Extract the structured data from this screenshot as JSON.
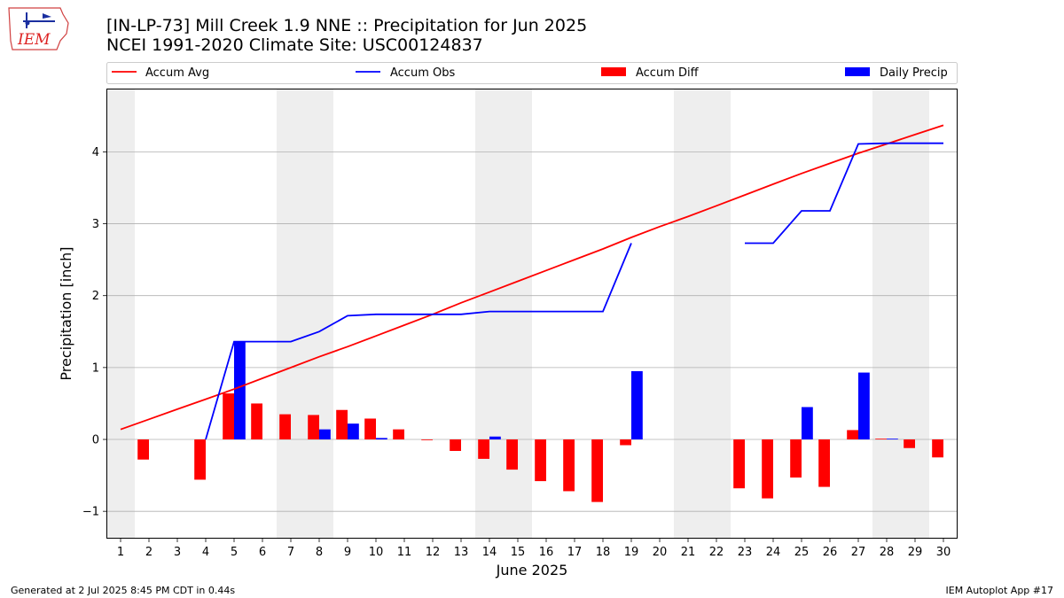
{
  "header": {
    "title_line1": "[IN-LP-73] Mill Creek 1.9 NNE :: Precipitation for Jun 2025",
    "title_line2": "NCEI 1991-2020 Climate Site: USC00124837"
  },
  "logo": {
    "text": "IEM"
  },
  "footer": {
    "left": "Generated at 2 Jul 2025 8:45 PM CDT in 0.44s",
    "right": "IEM Autoplot App #17"
  },
  "colors": {
    "avg": "#ff0000",
    "obs": "#0000ff",
    "diff": "#ff0000",
    "daily": "#0000ff",
    "weekend_band": "#eeeeee",
    "grid": "#b0b0b0"
  },
  "chart_data": {
    "type": "bar",
    "xlabel": "June 2025",
    "ylabel": "Precipitation [inch]",
    "xlim": [
      0.5,
      30.5
    ],
    "ylim": [
      -1.38,
      4.88
    ],
    "yticks": [
      -1,
      0,
      1,
      2,
      3,
      4
    ],
    "ytick_labels": [
      "−1",
      "0",
      "1",
      "2",
      "3",
      "4"
    ],
    "grid": "horizontal",
    "legend_placement": "top",
    "legend": [
      "Accum Avg",
      "Accum Obs",
      "Accum Diff",
      "Daily Precip"
    ],
    "days": [
      1,
      2,
      3,
      4,
      5,
      6,
      7,
      8,
      9,
      10,
      11,
      12,
      13,
      14,
      15,
      16,
      17,
      18,
      19,
      20,
      21,
      22,
      23,
      24,
      25,
      26,
      27,
      28,
      29,
      30
    ],
    "weekend_days": [
      1,
      7,
      8,
      14,
      15,
      21,
      22,
      28,
      29
    ],
    "series": [
      {
        "name": "Accum Avg",
        "kind": "line",
        "values": [
          0.14,
          0.28,
          0.42,
          0.56,
          0.7,
          0.85,
          1.0,
          1.15,
          1.29,
          1.44,
          1.59,
          1.74,
          1.9,
          2.05,
          2.2,
          2.35,
          2.5,
          2.65,
          2.81,
          2.96,
          3.1,
          3.25,
          3.4,
          3.55,
          3.7,
          3.84,
          3.98,
          4.11,
          4.24,
          4.37
        ]
      },
      {
        "name": "Accum Obs",
        "kind": "line",
        "values": [
          null,
          null,
          null,
          0.0,
          1.36,
          1.36,
          1.36,
          1.5,
          1.72,
          1.74,
          1.74,
          1.74,
          1.74,
          1.78,
          1.78,
          1.78,
          1.78,
          1.78,
          2.73,
          null,
          null,
          null,
          2.73,
          2.73,
          3.18,
          3.18,
          4.11,
          4.12,
          4.12,
          4.12
        ]
      },
      {
        "name": "Accum Diff",
        "kind": "bar",
        "values": [
          null,
          -0.28,
          null,
          -0.56,
          0.64,
          0.5,
          0.35,
          0.34,
          0.41,
          0.29,
          0.14,
          -0.01,
          -0.16,
          -0.27,
          -0.42,
          -0.58,
          -0.72,
          -0.87,
          -0.08,
          null,
          null,
          null,
          -0.68,
          -0.82,
          -0.53,
          -0.66,
          0.13,
          0.01,
          -0.12,
          -0.25
        ]
      },
      {
        "name": "Daily Precip",
        "kind": "bar",
        "values": [
          null,
          null,
          null,
          0.0,
          1.36,
          0.0,
          0.0,
          0.14,
          0.22,
          0.02,
          0.0,
          0.0,
          0.0,
          0.04,
          0.0,
          0.0,
          0.0,
          0.0,
          0.95,
          null,
          null,
          null,
          0.0,
          0.0,
          0.45,
          0.0,
          0.93,
          0.01,
          0.0,
          0.0
        ]
      }
    ]
  }
}
